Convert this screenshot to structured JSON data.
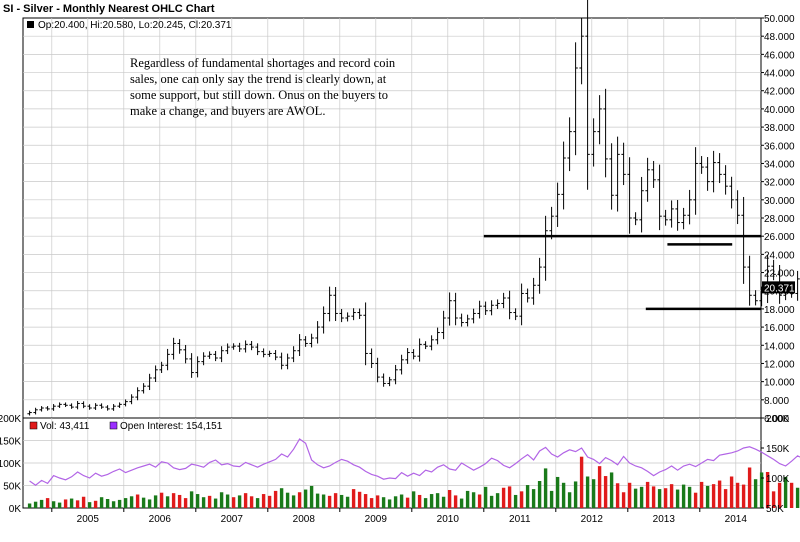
{
  "chart_data": {
    "type": "ohlc",
    "title": "SI - Silver - Monthly Nearest OHLC Chart",
    "info_line": "Op:20.400, Hi:20.580, Lo:20.245, Cl:20.371",
    "last_price_label": "20.371",
    "annotation_lines": [
      "Regardless of fundamental shortages and record coin",
      "sales, one can only say the trend is clearly down, at",
      "some support, but still down.  Onus on the buyers to",
      "make a change, and buyers are AWOL."
    ],
    "ylim": [
      6,
      50
    ],
    "y_ticks": [
      "6.000",
      "8.000",
      "10.000",
      "12.000",
      "14.000",
      "16.000",
      "18.000",
      "20.000",
      "22.000",
      "24.000",
      "26.000",
      "28.000",
      "30.000",
      "32.000",
      "34.000",
      "36.000",
      "38.000",
      "40.000",
      "42.000",
      "44.000",
      "46.000",
      "48.000",
      "50.000"
    ],
    "x_range": [
      2004.6,
      2014.85
    ],
    "x_ticks": [
      "2005",
      "2006",
      "2007",
      "2008",
      "2009",
      "2010",
      "2011",
      "2012",
      "2013",
      "2014"
    ],
    "grid": true,
    "support_lines": [
      {
        "x0": 2011.0,
        "x1": 2014.85,
        "y": 26.0
      },
      {
        "x0": 2013.55,
        "x1": 2014.45,
        "y": 25.1
      },
      {
        "x0": 2013.25,
        "x1": 2014.85,
        "y": 18.0
      }
    ],
    "close_series": [
      6.6,
      6.9,
      7.1,
      7.0,
      7.3,
      7.5,
      7.4,
      7.2,
      7.6,
      7.3,
      7.1,
      7.4,
      7.2,
      7.0,
      7.3,
      7.5,
      7.8,
      8.3,
      9.0,
      9.5,
      10.4,
      11.3,
      11.8,
      13.0,
      14.2,
      13.5,
      12.5,
      11.0,
      12.2,
      12.8,
      13.0,
      12.6,
      13.4,
      13.8,
      13.9,
      13.6,
      14.1,
      13.8,
      13.3,
      13.0,
      13.1,
      12.7,
      11.8,
      12.6,
      13.4,
      14.6,
      14.2,
      14.8,
      16.0,
      17.5,
      19.5,
      17.5,
      17.0,
      17.2,
      17.6,
      17.3,
      13.1,
      12.0,
      10.5,
      9.8,
      10.2,
      11.3,
      12.4,
      13.2,
      12.8,
      14.1,
      13.9,
      14.6,
      15.4,
      17.0,
      18.9,
      17.0,
      16.5,
      16.9,
      17.5,
      18.3,
      17.8,
      18.4,
      18.6,
      19.2,
      17.6,
      17.2,
      19.7,
      19.2,
      20.6,
      22.6,
      26.6,
      28.2,
      30.6,
      34.6,
      37.5,
      44.5,
      48.0,
      35.0,
      37.5,
      40.0,
      34.5,
      30.5,
      35.0,
      32.8,
      28.0,
      27.8,
      31.0,
      33.3,
      32.2,
      28.2,
      27.8,
      29.0,
      27.5,
      28.3,
      30.0,
      34.0,
      33.6,
      32.0,
      34.1,
      32.8,
      31.5,
      30.0,
      28.3,
      22.6,
      19.5,
      18.9,
      19.8,
      22.7,
      21.8,
      19.5,
      20.1,
      19.7,
      21.3,
      19.9,
      18.8,
      19.5,
      20.5,
      21.8,
      20.6,
      20.4
    ],
    "volume_axis": {
      "left_ticks": [
        "0K",
        "50K",
        "100K",
        "150K",
        "200K"
      ],
      "right_ticks": [
        "50K",
        "100K",
        "150K",
        "200K"
      ]
    },
    "volume_series": [
      10,
      14,
      18,
      22,
      15,
      12,
      19,
      21,
      17,
      25,
      13,
      16,
      24,
      20,
      15,
      18,
      22,
      26,
      30,
      23,
      19,
      28,
      34,
      26,
      33,
      29,
      22,
      37,
      31,
      24,
      27,
      21,
      35,
      30,
      24,
      28,
      33,
      26,
      22,
      31,
      27,
      38,
      44,
      34,
      28,
      35,
      41,
      49,
      32,
      30,
      27,
      33,
      29,
      25,
      42,
      36,
      31,
      22,
      28,
      24,
      19,
      26,
      30,
      23,
      37,
      29,
      22,
      31,
      33,
      25,
      40,
      28,
      21,
      38,
      35,
      30,
      47,
      27,
      33,
      45,
      48,
      29,
      37,
      51,
      42,
      60,
      88,
      38,
      69,
      56,
      35,
      59,
      114,
      70,
      64,
      93,
      71,
      79,
      55,
      35,
      56,
      43,
      47,
      58,
      48,
      42,
      44,
      53,
      41,
      52,
      47,
      34,
      58,
      49,
      53,
      61,
      42,
      70,
      56,
      52,
      90,
      64,
      79,
      80,
      37,
      56,
      69,
      56,
      45,
      50,
      76,
      55,
      62,
      73,
      54,
      48
    ],
    "volume_up": [
      true,
      true,
      true,
      false,
      true,
      true,
      false,
      true,
      false,
      false,
      true,
      false,
      true,
      true,
      true,
      true,
      true,
      true,
      false,
      true,
      true,
      true,
      false,
      true,
      false,
      false,
      false,
      true,
      true,
      true,
      false,
      true,
      true,
      true,
      false,
      true,
      false,
      false,
      true,
      false,
      false,
      false,
      true,
      true,
      true,
      false,
      true,
      true,
      true,
      true,
      false,
      false,
      true,
      true,
      false,
      false,
      false,
      false,
      false,
      true,
      true,
      true,
      true,
      false,
      true,
      false,
      true,
      true,
      true,
      true,
      false,
      false,
      true,
      true,
      true,
      false,
      true,
      true,
      true,
      false,
      false,
      true,
      false,
      true,
      true,
      true,
      true,
      true,
      true,
      true,
      true,
      true,
      false,
      true,
      true,
      false,
      false,
      true,
      false,
      false,
      false,
      true,
      true,
      false,
      false,
      true,
      false,
      false,
      true,
      true,
      true,
      false,
      false,
      true,
      false,
      false,
      false,
      false,
      false,
      false,
      false,
      true,
      true,
      false,
      false,
      false,
      true,
      false,
      true,
      false,
      false,
      true,
      true,
      true,
      false,
      false
    ],
    "volume_last_label": "Vol: 43,411",
    "open_interest_label": "Open Interest: 154,151",
    "open_interest_series": [
      95,
      88,
      96,
      91,
      104,
      100,
      97,
      102,
      110,
      104,
      100,
      108,
      103,
      106,
      111,
      115,
      109,
      113,
      117,
      120,
      123,
      118,
      127,
      125,
      117,
      114,
      116,
      123,
      121,
      118,
      126,
      130,
      122,
      124,
      120,
      119,
      126,
      122,
      118,
      123,
      127,
      131,
      140,
      135,
      148,
      165,
      158,
      130,
      122,
      117,
      120,
      126,
      131,
      128,
      122,
      118,
      111,
      106,
      103,
      98,
      100,
      99,
      109,
      103,
      108,
      104,
      113,
      110,
      118,
      122,
      115,
      113,
      125,
      119,
      113,
      118,
      124,
      133,
      129,
      121,
      117,
      124,
      132,
      139,
      130,
      145,
      151,
      140,
      135,
      142,
      147,
      144,
      150,
      135,
      131,
      124,
      134,
      129,
      122,
      136,
      125,
      120,
      117,
      111,
      104,
      110,
      114,
      120,
      113,
      120,
      123,
      119,
      125,
      131,
      129,
      138,
      140,
      142,
      145,
      150,
      152,
      148,
      143,
      137,
      131,
      124,
      120,
      128,
      137,
      132,
      143,
      151,
      155,
      159,
      153,
      154
    ]
  },
  "colors": {
    "grid": "#c9c9c9",
    "bars": "#000000",
    "volume_up": "#1a7a1a",
    "volume_down": "#e01b1b",
    "open_interest": "#b265e6",
    "legend_vol": "#e01b1b",
    "legend_oi": "#9b30ff"
  }
}
